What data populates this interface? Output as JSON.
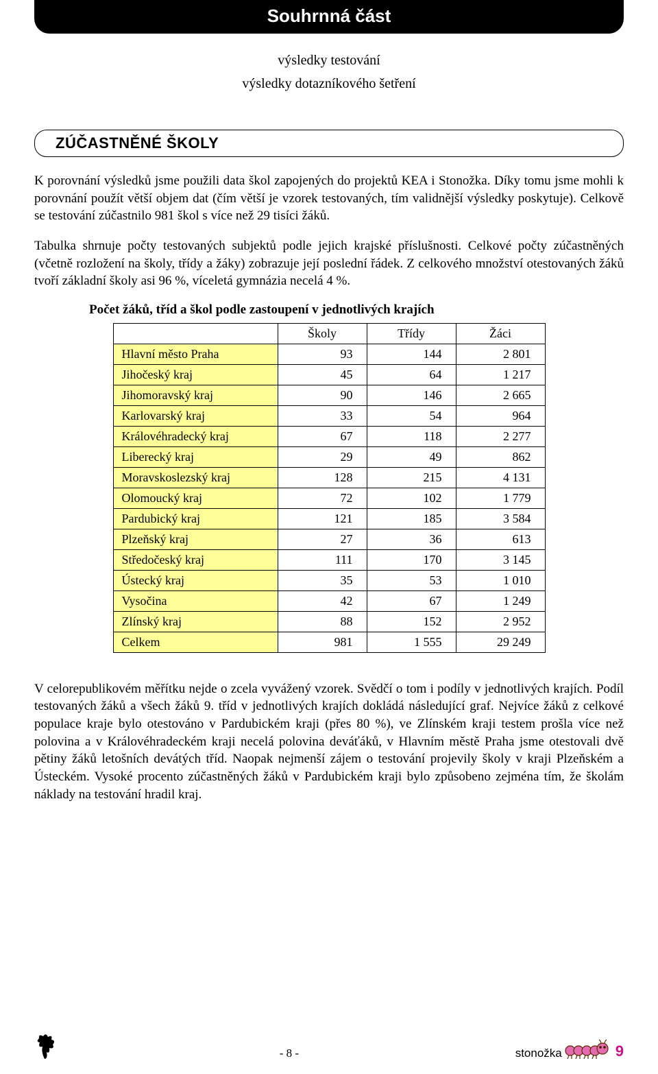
{
  "header": {
    "title": "Souhrnná část"
  },
  "subtitles": {
    "line1": "výsledky testování",
    "line2": "výsledky dotazníkového šetření"
  },
  "section": {
    "heading": "ZÚČASTNĚNÉ ŠKOLY"
  },
  "paragraphs": {
    "p1": "K porovnání výsledků jsme použili data škol zapojených do projektů KEA i Stonožka. Díky tomu jsme mohli k porovnání použít větší objem dat (čím větší je vzorek testovaných, tím validnější výsledky poskytuje). Celkově se testování zúčastnilo 981 škol s více než 29 tisíci žáků.",
    "p2": "Tabulka shrnuje počty testovaných subjektů podle jejich krajské příslušnosti. Celkové počty zúčastněných (včetně rozložení na školy, třídy a žáky) zobrazuje její poslední řádek. Z celkového množství otestovaných žáků tvoří základní školy asi 96 %, víceletá gymnázia necelá 4 %.",
    "p3": "V celorepublikovém měřítku nejde o zcela vyvážený vzorek. Svědčí o tom i podíly v jednotlivých krajích. Podíl testovaných žáků a všech žáků 9. tříd v jednotlivých krajích dokládá následující graf. Nejvíce žáků z celkové populace kraje bylo otestováno v Pardubickém kraji (přes 80 %), ve Zlínském kraji testem prošla více než polovina a v Královéhradeckém kraji necelá polovina deváťáků, v Hlavním městě Praha jsme otestovali dvě pětiny žáků letošních devátých tříd. Naopak nejmenší zájem o testování projevily školy v kraji Plzeňském a Ústeckém. Vysoké procento zúčastněných žáků v Pardubickém kraji bylo způsobeno zejména tím, že školám náklady na testování hradil kraj."
  },
  "table": {
    "title": "Počet žáků, tříd a škol podle zastoupení v jednotlivých krajích",
    "headers": {
      "c1": "Školy",
      "c2": "Třídy",
      "c3": "Žáci"
    },
    "label_bg": "#ffff99",
    "border_color": "#000000",
    "rows": [
      {
        "label": "Hlavní město Praha",
        "c1": "93",
        "c2": "144",
        "c3": "2 801"
      },
      {
        "label": "Jihočeský kraj",
        "c1": "45",
        "c2": "64",
        "c3": "1 217"
      },
      {
        "label": "Jihomoravský kraj",
        "c1": "90",
        "c2": "146",
        "c3": "2 665"
      },
      {
        "label": "Karlovarský kraj",
        "c1": "33",
        "c2": "54",
        "c3": "964"
      },
      {
        "label": "Královéhradecký kraj",
        "c1": "67",
        "c2": "118",
        "c3": "2 277"
      },
      {
        "label": "Liberecký kraj",
        "c1": "29",
        "c2": "49",
        "c3": "862"
      },
      {
        "label": "Moravskoslezský kraj",
        "c1": "128",
        "c2": "215",
        "c3": "4 131"
      },
      {
        "label": "Olomoucký kraj",
        "c1": "72",
        "c2": "102",
        "c3": "1 779"
      },
      {
        "label": "Pardubický kraj",
        "c1": "121",
        "c2": "185",
        "c3": "3 584"
      },
      {
        "label": "Plzeňský kraj",
        "c1": "27",
        "c2": "36",
        "c3": "613"
      },
      {
        "label": "Středočeský kraj",
        "c1": "111",
        "c2": "170",
        "c3": "3 145"
      },
      {
        "label": "Ústecký kraj",
        "c1": "35",
        "c2": "53",
        "c3": "1 010"
      },
      {
        "label": "Vysočina",
        "c1": "42",
        "c2": "67",
        "c3": "1 249"
      },
      {
        "label": "Zlínský kraj",
        "c1": "88",
        "c2": "152",
        "c3": "2 952"
      },
      {
        "label": "Celkem",
        "c1": "981",
        "c2": "1 555",
        "c3": "29 249"
      }
    ]
  },
  "footer": {
    "page": "- 8 -",
    "logo_text": "stonožka",
    "logo_num": "9",
    "splat_color": "#000000",
    "caterpillar_body": "#e56bb0",
    "caterpillar_outline": "#5a2a00"
  }
}
